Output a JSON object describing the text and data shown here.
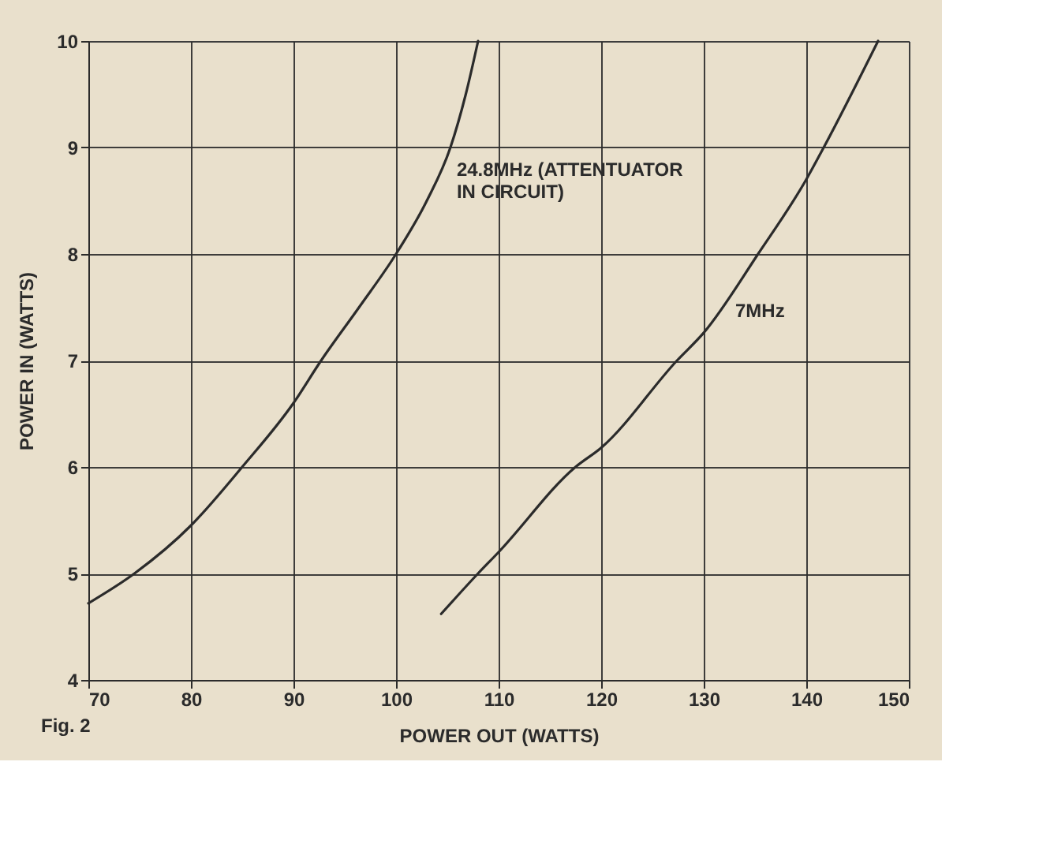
{
  "chart_data": {
    "type": "line",
    "xlabel": "POWER OUT (WATTS)",
    "ylabel": "POWER IN (WATTS)",
    "annotations": [
      "Fig. 2"
    ],
    "xlim": [
      70,
      150
    ],
    "xticks": [
      70,
      80,
      90,
      100,
      110,
      120,
      130,
      140,
      150
    ],
    "ylim": [
      4,
      10
    ],
    "yticks": [
      4,
      5,
      6,
      7,
      8,
      9,
      10
    ],
    "grid": true,
    "marker": "none",
    "line_style": "solid",
    "series": [
      {
        "name": "24.8MHz (ATTENTUATOR\nIN CIRCUIT)",
        "color": "#2b2b2b",
        "x": [
          70,
          74.5,
          80,
          85,
          90,
          92.7,
          96.4,
          100,
          103,
          105.3,
          106.8,
          108
        ],
        "values": [
          4.72,
          5,
          5.45,
          6,
          6.6,
          7,
          7.5,
          8,
          8.5,
          9,
          9.5,
          10
        ]
      },
      {
        "name": "7MHz",
        "color": "#2b2b2b",
        "x": [
          104.4,
          108,
          110,
          117.5,
          120,
          127.4,
          130,
          135.3,
          140,
          141.7,
          147
        ],
        "values": [
          4.62,
          5,
          5.2,
          6,
          6.18,
          7,
          7.26,
          8,
          8.7,
          9,
          10
        ]
      }
    ]
  }
}
